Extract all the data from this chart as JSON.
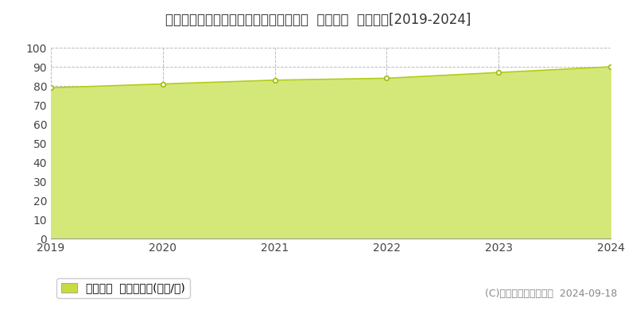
{
  "title": "兵庫県西宮市上甲子園４丁目１２０番２  公示地価  地価推移[2019-2024]",
  "years": [
    2019,
    2020,
    2021,
    2022,
    2023,
    2024
  ],
  "values": [
    79,
    81,
    83,
    84,
    87,
    90
  ],
  "ylim": [
    0,
    100
  ],
  "yticks": [
    0,
    10,
    20,
    30,
    40,
    50,
    60,
    70,
    80,
    90,
    100
  ],
  "line_color": "#b5cc18",
  "fill_color": "#d4e87a",
  "fill_alpha": 1.0,
  "marker_color": "#ffffff",
  "marker_edge_color": "#a0bb10",
  "grid_color": "#bbbbbb",
  "background_color": "#ffffff",
  "legend_label": "公示地価  平均坪単価(万円/坪)",
  "legend_marker_color": "#c8dc3c",
  "copyright_text": "(C)土地価格ドットコム  2024-09-18",
  "title_fontsize": 12,
  "tick_fontsize": 10,
  "legend_fontsize": 10,
  "copyright_fontsize": 9
}
